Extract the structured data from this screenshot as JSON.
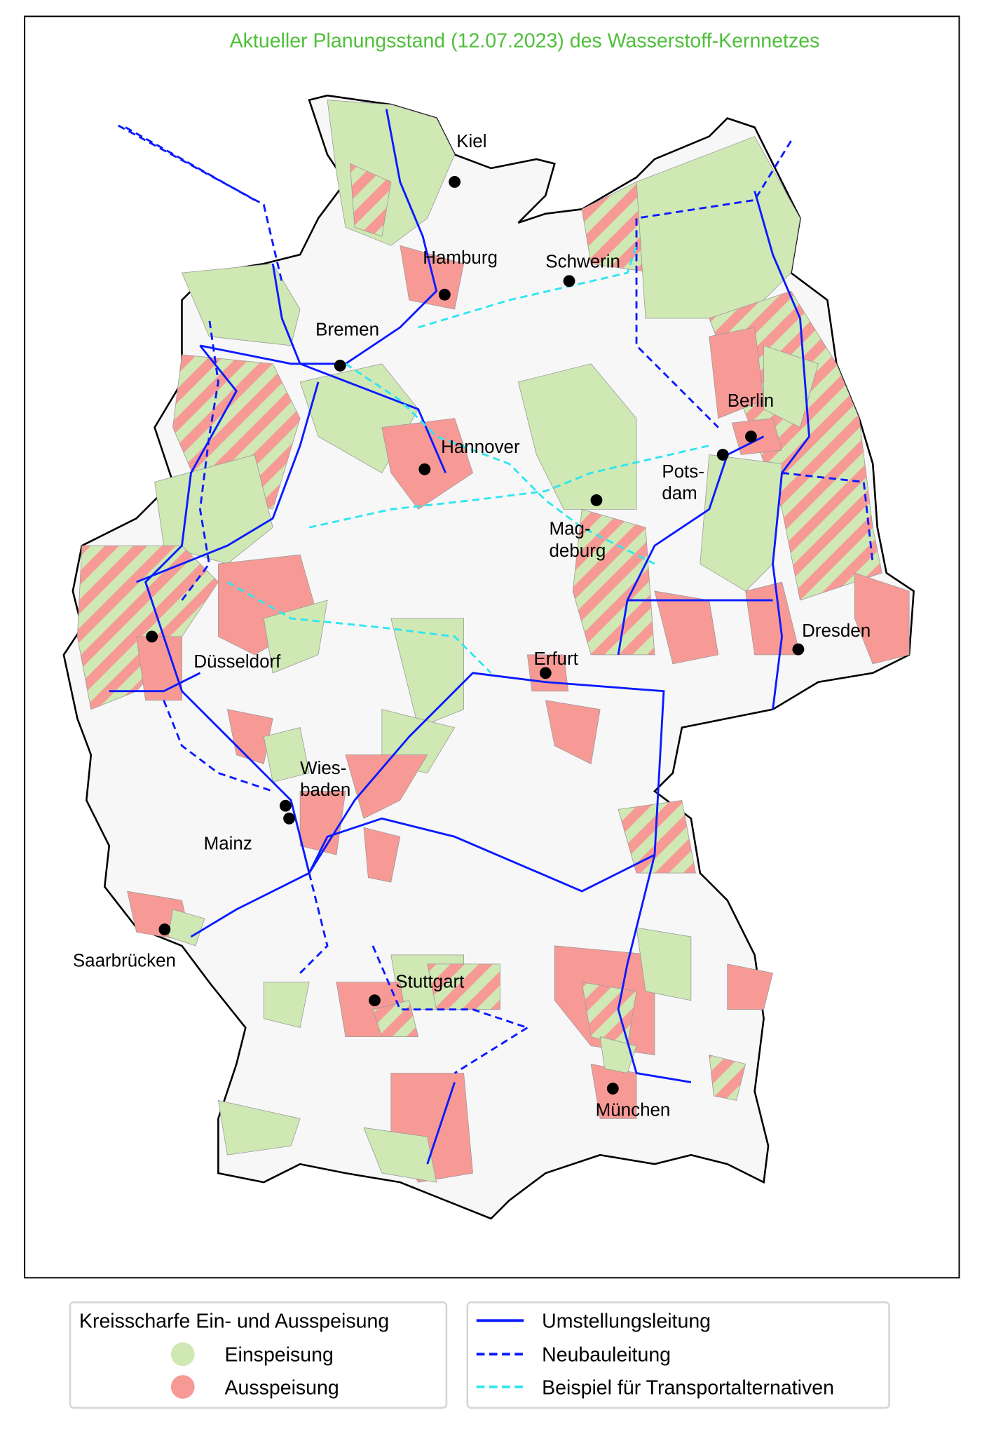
{
  "title": "Aktueller Planungsstand (12.07.2023) des Wasserstoff-Kernnetzes",
  "colors": {
    "einspeisung": "#cfe8b4",
    "ausspeisung": "#f79a96",
    "umstellungsleitung": "#0a1aff",
    "neubauleitung": "#0a1aff",
    "transportalternativen": "#2ee6f0",
    "land": "#f7f7f7"
  },
  "cities": [
    {
      "name": "Kiel"
    },
    {
      "name": "Hamburg"
    },
    {
      "name": "Schwerin"
    },
    {
      "name": "Bremen"
    },
    {
      "name": "Berlin"
    },
    {
      "name": "Pots-",
      "name2": "dam"
    },
    {
      "name": "Hannover"
    },
    {
      "name": "Mag-",
      "name2": "deburg"
    },
    {
      "name": "Dresden"
    },
    {
      "name": "Erfurt"
    },
    {
      "name": "Düsseldorf"
    },
    {
      "name": "Wies-",
      "name2": "baden"
    },
    {
      "name": "Mainz"
    },
    {
      "name": "Saarbrücken"
    },
    {
      "name": "Stuttgart"
    },
    {
      "name": "München"
    }
  ],
  "legend_regions": {
    "title": "Kreisscharfe Ein- und Ausspeisung",
    "items": [
      {
        "label": "Einspeisung",
        "icon": "green-circle"
      },
      {
        "label": "Ausspeisung",
        "icon": "red-circle"
      }
    ]
  },
  "legend_lines": {
    "items": [
      {
        "label": "Umstellungsleitung",
        "style": "solid"
      },
      {
        "label": "Neubauleitung",
        "style": "dashed"
      },
      {
        "label": "Beispiel für Transportalternativen",
        "style": "dashed-cyan"
      }
    ]
  }
}
